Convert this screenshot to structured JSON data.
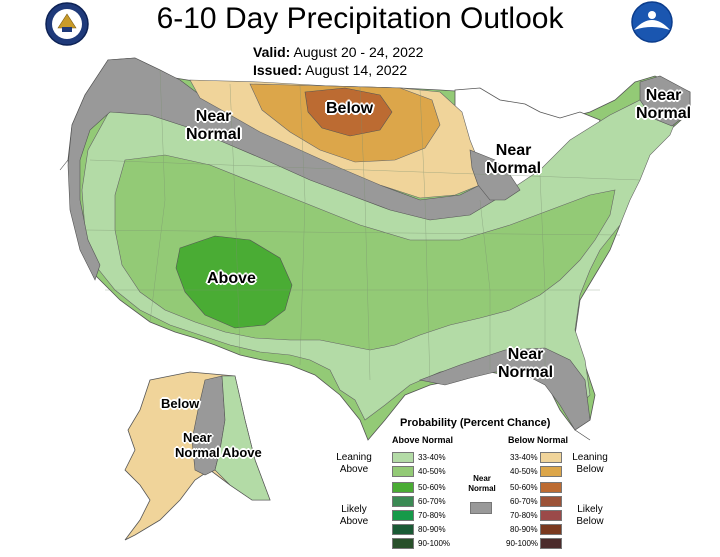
{
  "title": "6-10 Day Precipitation Outlook",
  "valid": {
    "label": "Valid:",
    "value": "August 20 - 24, 2022"
  },
  "issued": {
    "label": "Issued:",
    "value": "August 14, 2022"
  },
  "logos": {
    "left": "doc-seal-icon",
    "right": "noaa-logo-icon"
  },
  "colors": {
    "above_33_40": "#b3dba6",
    "above_40_50": "#93ca76",
    "above_50_60": "#4aac34",
    "above_60_70": "#3b8a54",
    "above_70_80": "#169a49",
    "above_80_90": "#1a5a35",
    "above_90_100": "#28502a",
    "below_33_40": "#f0d49a",
    "below_40_50": "#dca64a",
    "below_50_60": "#bc6b32",
    "below_60_70": "#9b5237",
    "below_70_80": "#9b4a49",
    "below_80_90": "#7a3a20",
    "below_90_100": "#4b2b2b",
    "near_normal": "#999999"
  },
  "map_labels": {
    "near_normal_west": [
      "Near",
      "Normal"
    ],
    "below_north": "Below",
    "near_normal_greatlakes": [
      "Near",
      "Normal"
    ],
    "near_normal_northeast": [
      "Near",
      "Normal"
    ],
    "above_southwest": "Above",
    "near_normal_southeast": [
      "Near",
      "Normal"
    ],
    "alaska_below": "Below",
    "alaska_near_normal": [
      "Near",
      "Normal"
    ],
    "alaska_above": "Above"
  },
  "legend": {
    "title": "Probability (Percent Chance)",
    "above_header": "Above Normal",
    "below_header": "Below Normal",
    "near_normal": [
      "Near",
      "Normal"
    ],
    "leaning_above": [
      "Leaning",
      "Above"
    ],
    "likely_above": [
      "Likely",
      "Above"
    ],
    "leaning_below": [
      "Leaning",
      "Below"
    ],
    "likely_below": [
      "Likely",
      "Below"
    ],
    "above_bins": [
      "33-40%",
      "40-50%",
      "50-60%",
      "60-70%",
      "70-80%",
      "80-90%",
      "90-100%"
    ],
    "below_bins": [
      "33-40%",
      "40-50%",
      "50-60%",
      "60-70%",
      "70-80%",
      "80-90%",
      "90-100%"
    ]
  }
}
